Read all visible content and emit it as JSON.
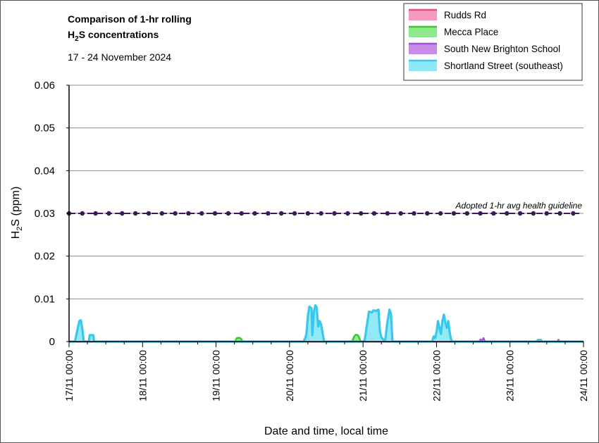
{
  "chart_data": {
    "type": "area",
    "title_line1": "Comparison of 1-hr rolling",
    "title_line2_main": "H",
    "title_line2_sub": "2",
    "title_line2_rest": "S concentrations",
    "subtitle": "17 - 24 November 2024",
    "ylabel_main": "H",
    "ylabel_sub": "2",
    "ylabel_rest": "S (ppm)",
    "xlabel": "Date and time, local time",
    "ylim": [
      0,
      0.06
    ],
    "yticks": [
      "0",
      "0.01",
      "0.02",
      "0.03",
      "0.04",
      "0.05",
      "0.06"
    ],
    "xlim": [
      0,
      7
    ],
    "xticks": [
      "17/11 00:00",
      "18/11 00:00",
      "19/11 00:00",
      "20/11 00:00",
      "21/11 00:00",
      "22/11 00:00",
      "23/11 00:00",
      "24/11 00:00"
    ],
    "grid": true,
    "legend_position": "top-right",
    "guideline": {
      "label": "Adopted 1-hr avg health guideline",
      "value": 0.03,
      "color": "#3b1a5a"
    },
    "series": [
      {
        "name": "Rudds Rd",
        "fill": "#f59bbf",
        "stroke": "#e8488a",
        "points": [
          [
            0,
            0
          ],
          [
            7,
            0
          ]
        ]
      },
      {
        "name": "Mecca Place",
        "fill": "#8ee88e",
        "stroke": "#33cc33",
        "points": [
          [
            0,
            0
          ],
          [
            2.26,
            0
          ],
          [
            2.28,
            0.0008
          ],
          [
            2.31,
            0.0009
          ],
          [
            2.34,
            0.0007
          ],
          [
            2.36,
            0
          ],
          [
            3.85,
            0
          ],
          [
            3.88,
            0.0012
          ],
          [
            3.9,
            0.0016
          ],
          [
            3.93,
            0.0015
          ],
          [
            3.95,
            0.0008
          ],
          [
            3.97,
            0
          ],
          [
            7,
            0
          ]
        ]
      },
      {
        "name": "South New Brighton School",
        "fill": "#c88be8",
        "stroke": "#a84fd6",
        "points": [
          [
            0,
            0
          ],
          [
            3.19,
            0
          ],
          [
            3.2,
            0.0005
          ],
          [
            3.22,
            0.0002
          ],
          [
            3.24,
            0.0016
          ],
          [
            3.26,
            0.0004
          ],
          [
            3.28,
            0
          ],
          [
            4.0,
            0
          ],
          [
            4.02,
            0.0004
          ],
          [
            4.04,
            0
          ],
          [
            4.11,
            0
          ],
          [
            4.12,
            0.0009
          ],
          [
            4.14,
            0.0003
          ],
          [
            4.16,
            0
          ],
          [
            5.58,
            0
          ],
          [
            5.6,
            0.0005
          ],
          [
            5.62,
            0.0002
          ],
          [
            5.64,
            0.0008
          ],
          [
            5.66,
            0
          ],
          [
            6.64,
            0
          ],
          [
            6.66,
            0.0004
          ],
          [
            6.68,
            0
          ],
          [
            7,
            0
          ]
        ]
      },
      {
        "name": "Shortland Street (southeast)",
        "fill": "#8ee8f6",
        "stroke": "#38c8ec",
        "points": [
          [
            0,
            0
          ],
          [
            0.08,
            0
          ],
          [
            0.11,
            0.0025
          ],
          [
            0.14,
            0.0048
          ],
          [
            0.16,
            0.005
          ],
          [
            0.18,
            0.003
          ],
          [
            0.2,
            0
          ],
          [
            0.27,
            0
          ],
          [
            0.28,
            0.0015
          ],
          [
            0.33,
            0.0015
          ],
          [
            0.34,
            0
          ],
          [
            3.2,
            0
          ],
          [
            3.23,
            0.0018
          ],
          [
            3.25,
            0.006
          ],
          [
            3.27,
            0.0082
          ],
          [
            3.3,
            0.0078
          ],
          [
            3.31,
            0.0015
          ],
          [
            3.33,
            0.0068
          ],
          [
            3.35,
            0.0085
          ],
          [
            3.37,
            0.008
          ],
          [
            3.39,
            0.0035
          ],
          [
            3.41,
            0.0048
          ],
          [
            3.43,
            0.004
          ],
          [
            3.45,
            0.002
          ],
          [
            3.47,
            0
          ],
          [
            4.02,
            0
          ],
          [
            4.05,
            0.0035
          ],
          [
            4.08,
            0.007
          ],
          [
            4.12,
            0.0068
          ],
          [
            4.14,
            0.0073
          ],
          [
            4.18,
            0.0072
          ],
          [
            4.21,
            0.0075
          ],
          [
            4.23,
            0.0025
          ],
          [
            4.25,
            0.001
          ],
          [
            4.3,
            0
          ],
          [
            4.33,
            0.0045
          ],
          [
            4.36,
            0.0075
          ],
          [
            4.38,
            0.0065
          ],
          [
            4.4,
            0
          ],
          [
            4.94,
            0
          ],
          [
            4.96,
            0.0012
          ],
          [
            4.98,
            0.0008
          ],
          [
            5.0,
            0.0022
          ],
          [
            5.02,
            0.0048
          ],
          [
            5.04,
            0.0032
          ],
          [
            5.06,
            0.0018
          ],
          [
            5.08,
            0.0048
          ],
          [
            5.1,
            0.0063
          ],
          [
            5.12,
            0.0045
          ],
          [
            5.14,
            0.0032
          ],
          [
            5.16,
            0.0048
          ],
          [
            5.18,
            0.002
          ],
          [
            5.2,
            0.0004
          ],
          [
            5.22,
            0
          ],
          [
            6.36,
            0
          ],
          [
            6.38,
            0.0004
          ],
          [
            6.42,
            0.0004
          ],
          [
            6.44,
            0
          ],
          [
            7,
            0
          ]
        ]
      }
    ]
  }
}
